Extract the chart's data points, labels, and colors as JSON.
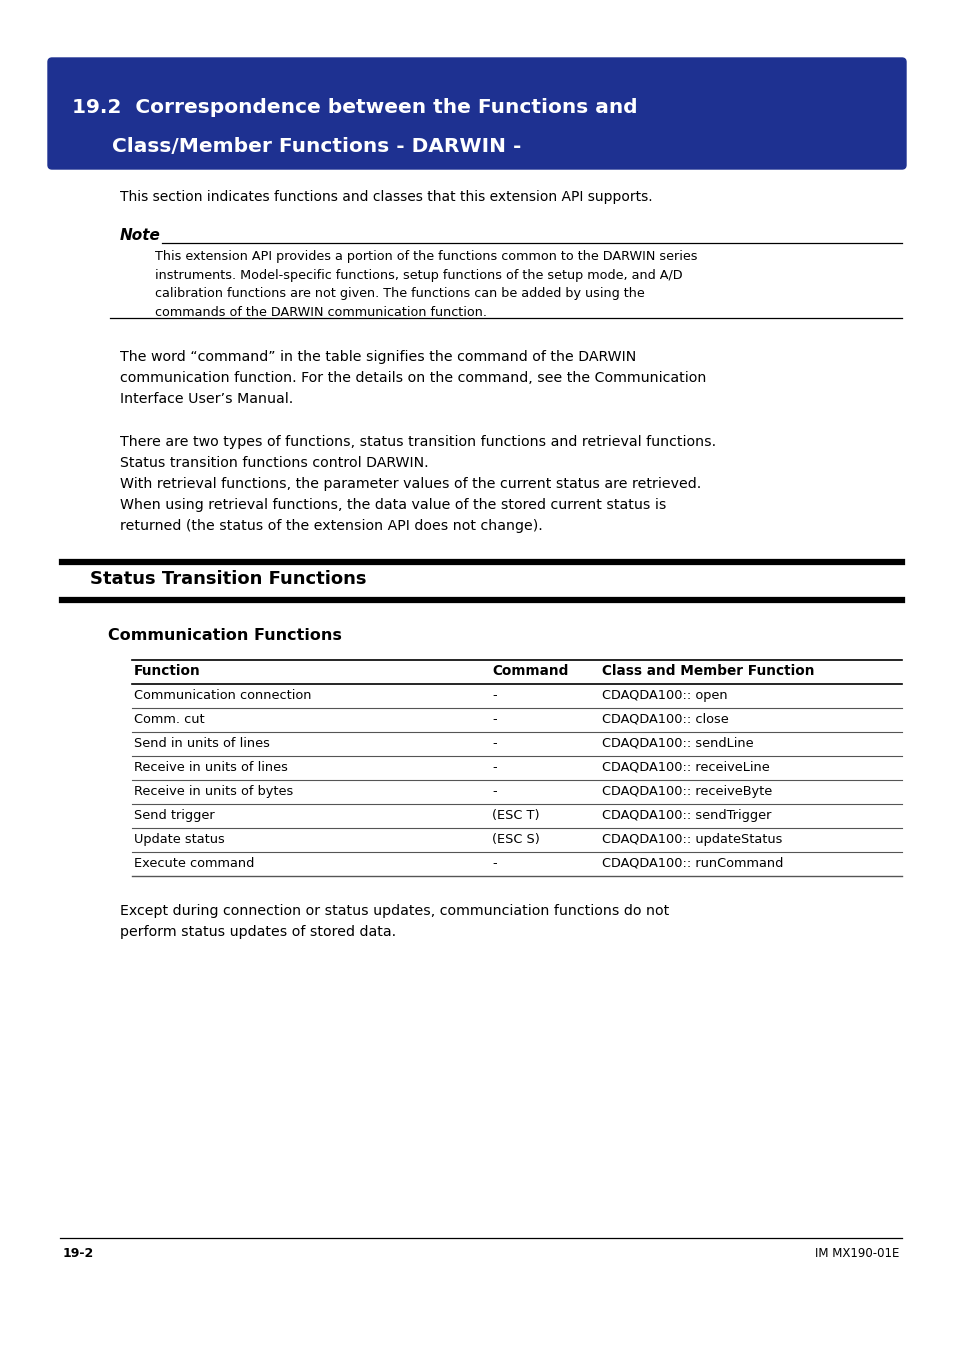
{
  "page_bg": "#ffffff",
  "header_bg": "#1e3191",
  "header_text_color": "#ffffff",
  "header_line1": "19.2  Correspondence between the Functions and",
  "header_line2": "Class/Member Functions - DARWIN -",
  "header_fontsize": 14.5,
  "section_intro": "This section indicates functions and classes that this extension API supports.",
  "note_label": "Note",
  "note_text": "This extension API provides a portion of the functions common to the DARWIN series\ninstruments. Model-specific functions, setup functions of the setup mode, and A/D\ncalibration functions are not given. The functions can be added by using the\ncommands of the DARWIN communication function.",
  "para1_line1": "The word “command” in the table signifies the command of the DARWIN",
  "para1_line2": "communication function. For the details on the command, see the Communication",
  "para1_line3": "Interface User’s Manual.",
  "para2_line1": "There are two types of functions, status transition functions and retrieval functions.",
  "para2_line2": "Status transition functions control DARWIN.",
  "para2_line3": "With retrieval functions, the parameter values of the current status are retrieved.",
  "para2_line4": "When using retrieval functions, the data value of the stored current status is",
  "para2_line5": "returned (the status of the extension API does not change).",
  "section_title": "Status Transition Functions",
  "subsection_title": "Communication Functions",
  "table_headers": [
    "Function",
    "Command",
    "Class and Member Function"
  ],
  "table_rows": [
    [
      "Communication connection",
      "-",
      "CDAQDA100:: open"
    ],
    [
      "Comm. cut",
      "-",
      "CDAQDA100:: close"
    ],
    [
      "Send in units of lines",
      "-",
      "CDAQDA100:: sendLine"
    ],
    [
      "Receive in units of lines",
      "-",
      "CDAQDA100:: receiveLine"
    ],
    [
      "Receive in units of bytes",
      "-",
      "CDAQDA100:: receiveByte"
    ],
    [
      "Send trigger",
      "(ESC T)",
      "CDAQDA100:: sendTrigger"
    ],
    [
      "Update status",
      "(ESC S)",
      "CDAQDA100:: updateStatus"
    ],
    [
      "Execute command",
      "-",
      "CDAQDA100:: runCommand"
    ]
  ],
  "footer_left": "19-2",
  "footer_right": "IM MX190-01E",
  "closing_text1": "Except during connection or status updates, communciation functions do not",
  "closing_text2": "perform status updates of stored data."
}
